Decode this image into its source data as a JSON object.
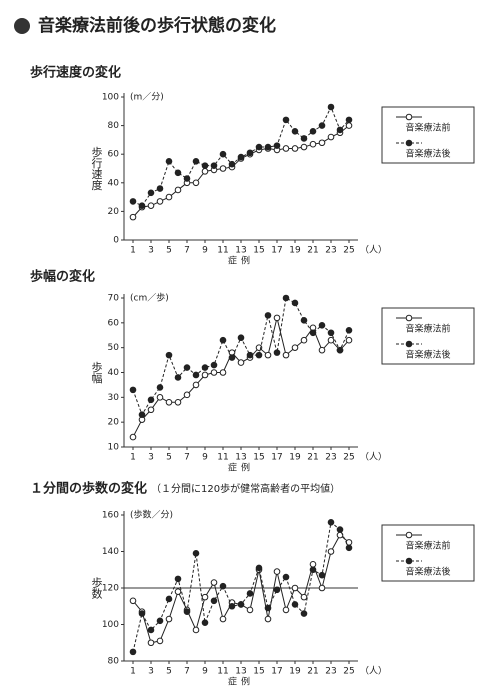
{
  "header": {
    "title": "音楽療法前後の歩行状態の変化"
  },
  "chart_data": [
    {
      "type": "line",
      "title": "歩行速度の変化",
      "y_unit": "(m／分)",
      "y_label": "歩行速度",
      "x_label": "症例",
      "x_unit": "（人）",
      "x": [
        1,
        2,
        3,
        4,
        5,
        6,
        7,
        8,
        9,
        10,
        11,
        12,
        13,
        14,
        15,
        16,
        17,
        18,
        19,
        20,
        21,
        22,
        23,
        24,
        25
      ],
      "xlim": [
        0,
        26
      ],
      "xticks": [
        1,
        3,
        5,
        7,
        9,
        11,
        13,
        15,
        17,
        19,
        21,
        23,
        25
      ],
      "ylim": [
        0,
        100
      ],
      "yticks": [
        0,
        20,
        40,
        60,
        80,
        100
      ],
      "series": [
        {
          "name": "音楽療法前",
          "color": "#222222",
          "style": "solid",
          "marker": "open",
          "values": [
            16,
            23,
            24,
            27,
            30,
            35,
            40,
            40,
            48,
            49,
            50,
            51,
            57,
            60,
            63,
            64,
            63,
            64,
            64,
            65,
            67,
            68,
            72,
            75,
            80
          ]
        },
        {
          "name": "音楽療法後",
          "color": "#222222",
          "style": "dashed",
          "marker": "filled",
          "values": [
            27,
            24,
            33,
            36,
            55,
            47,
            43,
            55,
            52,
            52,
            60,
            53,
            58,
            61,
            65,
            65,
            66,
            84,
            76,
            71,
            76,
            80,
            93,
            77,
            84
          ]
        }
      ]
    },
    {
      "type": "line",
      "title": "歩幅の変化",
      "y_unit": "(cm／歩)",
      "y_label": "歩幅",
      "x_label": "症例",
      "x_unit": "（人）",
      "x": [
        1,
        2,
        3,
        4,
        5,
        6,
        7,
        8,
        9,
        10,
        11,
        12,
        13,
        14,
        15,
        16,
        17,
        18,
        19,
        20,
        21,
        22,
        23,
        24,
        25
      ],
      "xlim": [
        0,
        26
      ],
      "xticks": [
        1,
        3,
        5,
        7,
        9,
        11,
        13,
        15,
        17,
        19,
        21,
        23,
        25
      ],
      "ylim": [
        10,
        70
      ],
      "yticks": [
        10,
        20,
        30,
        40,
        50,
        60,
        70
      ],
      "series": [
        {
          "name": "音楽療法前",
          "color": "#222222",
          "style": "solid",
          "marker": "open",
          "values": [
            14,
            21,
            25,
            30,
            28,
            28,
            31,
            35,
            39,
            40,
            40,
            48,
            44,
            46,
            50,
            47,
            62,
            47,
            50,
            53,
            58,
            49,
            53,
            49,
            53
          ]
        },
        {
          "name": "音楽療法後",
          "color": "#222222",
          "style": "dashed",
          "marker": "filled",
          "values": [
            33,
            23,
            29,
            34,
            47,
            38,
            42,
            39,
            42,
            43,
            53,
            46,
            54,
            47,
            47,
            63,
            48,
            70,
            68,
            61,
            56,
            59,
            56,
            49,
            57
          ]
        }
      ]
    },
    {
      "type": "line",
      "title": "１分間の歩数の変化",
      "subtitle": "（１分間に120歩が健常高齢者の平均値）",
      "y_unit": "(歩数／分)",
      "y_label": "歩数",
      "x_label": "症例",
      "x_unit": "（人）",
      "x": [
        1,
        2,
        3,
        4,
        5,
        6,
        7,
        8,
        9,
        10,
        11,
        12,
        13,
        14,
        15,
        16,
        17,
        18,
        19,
        20,
        21,
        22,
        23,
        24,
        25
      ],
      "xlim": [
        0,
        26
      ],
      "xticks": [
        1,
        3,
        5,
        7,
        9,
        11,
        13,
        15,
        17,
        19,
        21,
        23,
        25
      ],
      "ylim": [
        80,
        160
      ],
      "yticks": [
        80,
        100,
        120,
        140,
        160
      ],
      "reference_line": 120,
      "series": [
        {
          "name": "音楽療法前",
          "color": "#222222",
          "style": "solid",
          "marker": "open",
          "values": [
            113,
            107,
            90,
            91,
            103,
            118,
            108,
            97,
            115,
            123,
            103,
            112,
            111,
            108,
            130,
            103,
            129,
            108,
            120,
            115,
            133,
            120,
            140,
            149,
            145
          ]
        },
        {
          "name": "音楽療法後",
          "color": "#222222",
          "style": "dashed",
          "marker": "filled",
          "values": [
            85,
            106,
            97,
            102,
            114,
            125,
            107,
            139,
            101,
            113,
            121,
            110,
            111,
            117,
            131,
            109,
            119,
            126,
            111,
            106,
            130,
            127,
            156,
            152,
            142
          ]
        }
      ]
    }
  ]
}
